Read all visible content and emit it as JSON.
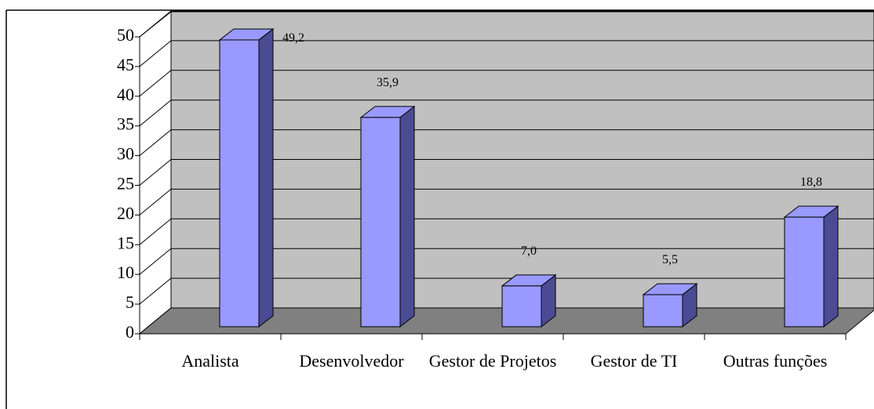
{
  "chart_data": {
    "type": "bar3d",
    "categories": [
      "Analista",
      "Desenvolvedor",
      "Gestor de Projetos",
      "Gestor de TI",
      "Outras funções"
    ],
    "values": [
      49.2,
      35.9,
      7.0,
      5.5,
      18.8
    ],
    "value_labels": [
      "49,2",
      "35,9",
      "7,0",
      "5,5",
      "18,8"
    ],
    "color": "#9999ff",
    "side_color": "#4b4b94",
    "ylim": [
      0,
      50
    ],
    "yticks": [
      0,
      5,
      10,
      15,
      20,
      25,
      30,
      35,
      40,
      45,
      50
    ],
    "grid": true
  }
}
